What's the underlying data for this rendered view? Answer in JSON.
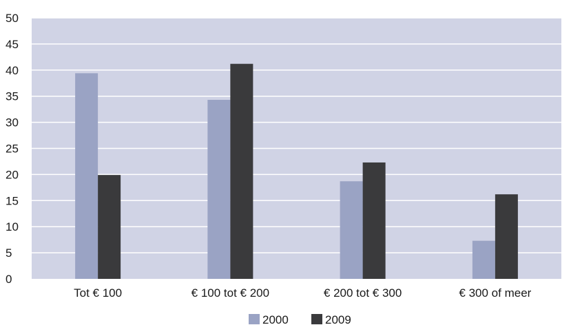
{
  "chart_data": {
    "type": "bar",
    "categories": [
      "Tot € 100",
      "€ 100 tot € 200",
      "€ 200 tot € 300",
      "€ 300 of meer"
    ],
    "series": [
      {
        "name": "2000",
        "values": [
          39.4,
          34.3,
          18.7,
          7.3
        ],
        "color": "#9aa3c4"
      },
      {
        "name": "2009",
        "values": [
          19.9,
          41.2,
          22.3,
          16.2
        ],
        "color": "#3a3a3c"
      }
    ],
    "title": "",
    "xlabel": "",
    "ylabel": "",
    "ylim": [
      0,
      50
    ],
    "yticks": [
      "0",
      "5",
      "10",
      "15",
      "20",
      "25",
      "30",
      "35",
      "40",
      "45",
      "50"
    ],
    "grid": true,
    "legend_position": "bottom-center",
    "plot_background": "#d0d3e5",
    "grid_color": "#ffffff"
  }
}
